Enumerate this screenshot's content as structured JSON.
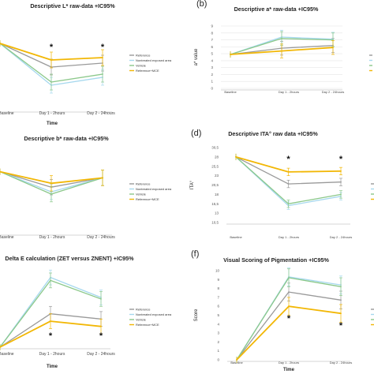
{
  "figure": {
    "colors": {
      "reference": "#9a9a9a",
      "nontreated": "#a6d8ee",
      "vehicle": "#8bc88a",
      "mce": "#f2b705",
      "axis": "#c8c8c8",
      "grid": "#e6e6e6",
      "text": "#222222"
    }
  },
  "chart_data": [
    {
      "panel": "a",
      "panel_label": "",
      "type": "line",
      "title": "Descriptive L* raw-data +IC95%",
      "xlabel": "Time",
      "ylabel": "",
      "x": [
        "Baseline",
        "Day 1 - 2hours",
        "Day 2 - 24hours"
      ],
      "ylim": [
        0,
        10
      ],
      "yticks": [],
      "grid": false,
      "legend_position": "right",
      "legend": [
        "Reference",
        "Nontreated exposed area",
        "Vehicle",
        "Reference+MCE"
      ],
      "series": [
        {
          "name": "Reference",
          "color_key": "reference",
          "values": [
            8.5,
            5.5,
            6.0
          ]
        },
        {
          "name": "Nontreated exposed area",
          "color_key": "nontreated",
          "values": [
            8.5,
            3.2,
            4.2
          ]
        },
        {
          "name": "Vehicle",
          "color_key": "vehicle",
          "values": [
            8.5,
            3.6,
            4.6
          ]
        },
        {
          "name": "Reference+MCE",
          "color_key": "mce",
          "values": [
            8.5,
            6.4,
            6.7
          ]
        }
      ],
      "error_bars": [
        1,
        1
      ],
      "annotations": [
        {
          "text": "*",
          "x": "Day 1 - 2hours",
          "y": 8.0
        },
        {
          "text": "*",
          "x": "Day 2 - 24hours",
          "y": 8.0
        }
      ]
    },
    {
      "panel": "b",
      "panel_label": "(b)",
      "type": "line",
      "title": "Descriptive a* raw-data +IC95%",
      "xlabel": "",
      "ylabel": "a* value",
      "x": [
        "Baseline",
        "Day 1 - 2hours",
        "Day 2 - 24hours"
      ],
      "ylim": [
        0,
        9
      ],
      "yticks": [
        "0",
        "1",
        "2",
        "3",
        "4",
        "5",
        "6",
        "7",
        "8",
        "9"
      ],
      "grid": true,
      "legend_position": "right",
      "legend": [],
      "series": [
        {
          "name": "",
          "color_key": "reference",
          "values": [
            4.9,
            5.8,
            6.2
          ]
        },
        {
          "name": "",
          "color_key": "nontreated",
          "values": [
            4.9,
            7.4,
            7.1
          ]
        },
        {
          "name": "",
          "color_key": "vehicle",
          "values": [
            4.9,
            7.2,
            7.0
          ]
        },
        {
          "name": "",
          "color_key": "mce",
          "values": [
            4.9,
            5.4,
            5.9
          ]
        }
      ],
      "error_bars": [
        1,
        1
      ],
      "annotations": []
    },
    {
      "panel": "c",
      "panel_label": "",
      "type": "line",
      "title": "Descriptive b* raw-data +IC95%",
      "xlabel": "",
      "ylabel": "",
      "x": [
        "Baseline",
        "Day 1 - 2hours",
        "Day 2 - 24hours"
      ],
      "ylim": [
        0,
        10
      ],
      "yticks": [],
      "grid": false,
      "legend_position": "right",
      "legend": [
        "Reference",
        "Nontreated exposed area",
        "Vehicle",
        "Reference+MCE"
      ],
      "series": [
        {
          "name": "Reference",
          "color_key": "reference",
          "values": [
            8.0,
            6.0,
            7.2
          ]
        },
        {
          "name": "Nontreated exposed area",
          "color_key": "nontreated",
          "values": [
            8.0,
            5.4,
            7.2
          ]
        },
        {
          "name": "Vehicle",
          "color_key": "vehicle",
          "values": [
            8.0,
            5.1,
            7.2
          ]
        },
        {
          "name": "Reference+MCE",
          "color_key": "mce",
          "values": [
            8.0,
            6.5,
            7.2
          ]
        }
      ],
      "error_bars": [
        1,
        1
      ],
      "annotations": []
    },
    {
      "panel": "d",
      "panel_label": "(d)",
      "type": "line",
      "title": "Descriptive ITA° raw data +IC95%",
      "xlabel": "",
      "ylabel": "ITA°",
      "x": [
        "Baseline",
        "Day 1 - 2hours",
        "Day 2 - 24hours"
      ],
      "ylim": [
        10.5,
        30.5
      ],
      "yticks": [
        "30,5",
        "28",
        "25,5",
        "23",
        "20,5",
        "18",
        "15,5",
        "13",
        "10,5"
      ],
      "grid": false,
      "legend_position": "right",
      "legend": [],
      "series": [
        {
          "name": "",
          "color_key": "reference",
          "values": [
            28,
            20.8,
            21.3
          ]
        },
        {
          "name": "",
          "color_key": "nontreated",
          "values": [
            28,
            15.0,
            17.5
          ]
        },
        {
          "name": "",
          "color_key": "vehicle",
          "values": [
            28,
            15.5,
            18.0
          ]
        },
        {
          "name": "",
          "color_key": "mce",
          "values": [
            28,
            24.0,
            24.2
          ]
        }
      ],
      "error_bars": [
        1,
        1
      ],
      "annotations": [
        {
          "text": "*",
          "x": "Day 1 - 2hours",
          "y": 27.3
        },
        {
          "text": "*",
          "x": "Day 2 - 24hours",
          "y": 27.3
        }
      ]
    },
    {
      "panel": "e",
      "panel_label": "",
      "type": "line",
      "title": "Delta E calculation (ZET versus ZNENT) +IC95%",
      "xlabel": "Time",
      "ylabel": "",
      "x": [
        "Baseline",
        "Day 1 - 2hours",
        "Day 2 - 24hours"
      ],
      "ylim": [
        0,
        10
      ],
      "yticks": [],
      "grid": false,
      "legend_position": "right",
      "legend": [
        "Reference",
        "Nontreated exposed area",
        "Vehicle",
        "Reference+MCE"
      ],
      "series": [
        {
          "name": "Reference",
          "color_key": "reference",
          "values": [
            0,
            4.5,
            3.8
          ]
        },
        {
          "name": "Nontreated exposed area",
          "color_key": "nontreated",
          "values": [
            0,
            9.4,
            6.7
          ]
        },
        {
          "name": "Vehicle",
          "color_key": "vehicle",
          "values": [
            0,
            9.0,
            6.5
          ]
        },
        {
          "name": "Reference+MCE",
          "color_key": "mce",
          "values": [
            0,
            3.5,
            2.8
          ]
        }
      ],
      "error_bars": [
        1,
        1
      ],
      "annotations": [
        {
          "text": "*",
          "x": "Day 1 - 2hours",
          "y": 1.5
        },
        {
          "text": "*",
          "x": "Day 2 - 24hours",
          "y": 1.5
        }
      ]
    },
    {
      "panel": "f",
      "panel_label": "(f)",
      "type": "line",
      "title": "Visual Scoring of Pigmentation +IC95%",
      "xlabel": "Time",
      "ylabel": "Score",
      "x": [
        "Baseline",
        "Day 1 - 2hours",
        "Day 2 - 24hours"
      ],
      "ylim": [
        0,
        10
      ],
      "yticks": [
        "0",
        "1",
        "2",
        "3",
        "4",
        "5",
        "6",
        "7",
        "8",
        "9",
        "10"
      ],
      "grid": false,
      "legend_position": "right",
      "legend": [],
      "series": [
        {
          "name": "",
          "color_key": "reference",
          "values": [
            0,
            7.6,
            6.7
          ]
        },
        {
          "name": "",
          "color_key": "nontreated",
          "values": [
            0,
            9.3,
            8.4
          ]
        },
        {
          "name": "",
          "color_key": "vehicle",
          "values": [
            0,
            9.2,
            8.2
          ]
        },
        {
          "name": "",
          "color_key": "mce",
          "values": [
            0,
            6.0,
            5.2
          ]
        }
      ],
      "error_bars": [
        1,
        1
      ],
      "annotations": [
        {
          "text": "*",
          "x": "Day 1 - 2hours",
          "y": 4.6
        },
        {
          "text": "*",
          "x": "Day 2 - 24hours",
          "y": 3.8
        }
      ]
    }
  ]
}
